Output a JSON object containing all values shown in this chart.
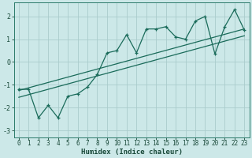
{
  "xlabel": "Humidex (Indice chaleur)",
  "ylabel": "",
  "xlim": [
    -0.5,
    23.5
  ],
  "ylim": [
    -3.3,
    2.6
  ],
  "xticks": [
    0,
    1,
    2,
    3,
    4,
    5,
    6,
    7,
    8,
    9,
    10,
    11,
    12,
    13,
    14,
    15,
    16,
    17,
    18,
    19,
    20,
    21,
    22,
    23
  ],
  "yticks": [
    -3,
    -2,
    -1,
    0,
    1,
    2
  ],
  "bg_color": "#cce8e8",
  "grid_color": "#aacccc",
  "line_color": "#1a6b5a",
  "line1_x": [
    0,
    23
  ],
  "line1_y": [
    -1.25,
    1.45
  ],
  "line2_x": [
    0,
    23
  ],
  "line2_y": [
    -1.55,
    1.15
  ],
  "data_x": [
    0,
    1,
    2,
    3,
    4,
    5,
    6,
    7,
    8,
    9,
    10,
    11,
    12,
    13,
    14,
    15,
    16,
    17,
    18,
    19,
    20,
    21,
    22,
    23
  ],
  "data_y": [
    -1.2,
    -1.2,
    -2.45,
    -1.9,
    -2.45,
    -1.5,
    -1.4,
    -1.1,
    -0.55,
    0.4,
    0.5,
    1.2,
    0.4,
    1.45,
    1.45,
    1.55,
    1.1,
    1.0,
    1.8,
    2.0,
    0.35,
    1.55,
    2.3,
    1.4
  ],
  "xlabel_fontsize": 6.5,
  "tick_fontsize": 5.5,
  "marker_size": 3.5,
  "font_name": "monospace"
}
